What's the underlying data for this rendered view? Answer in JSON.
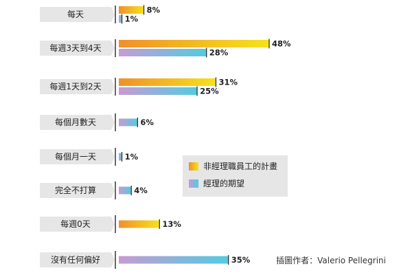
{
  "chart_data": {
    "type": "bar",
    "orientation": "horizontal",
    "categories": [
      "每天",
      "每週3天到4天",
      "每週1天到2天",
      "每個月數天",
      "每個月一天",
      "完全不打算",
      "每週0天",
      "沒有任何偏好"
    ],
    "series": [
      {
        "name": "非經理職員工的計畫",
        "values": [
          8,
          48,
          31,
          null,
          null,
          null,
          13,
          null
        ],
        "labels": [
          "8%",
          "48%",
          "31%",
          null,
          null,
          null,
          "13%",
          null
        ],
        "gradient": [
          "#f0902a",
          "#f5e21c"
        ]
      },
      {
        "name": "經理的期望",
        "values": [
          1,
          28,
          25,
          6,
          1,
          4,
          null,
          35
        ],
        "labels": [
          "1%",
          "28%",
          "25%",
          "6%",
          "1%",
          "4%",
          null,
          "35%"
        ],
        "gradient": [
          "#c79bd3",
          "#52cbe0"
        ]
      }
    ],
    "xlim": [
      0,
      48
    ],
    "legend_position": "center-right",
    "grid": false
  },
  "colors": {
    "label_box": "#e6e6e6",
    "legend_box": "#e6e6e6",
    "tick": "#333333",
    "text": "#222222"
  },
  "credit": "插圖作者：Valerio Pellegrini"
}
